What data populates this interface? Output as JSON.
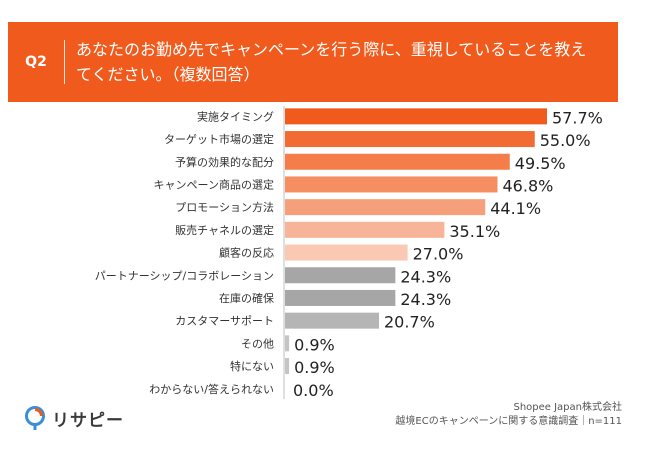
{
  "header": {
    "question_label": "Q2",
    "question_text": "あなたのお勤め先でキャンペーンを行う際に、重視していることを教えてください。（複数回答）"
  },
  "chart_data": {
    "type": "bar",
    "orientation": "horizontal",
    "categories": [
      "実施タイミング",
      "ターゲット市場の選定",
      "予算の効果的な配分",
      "キャンペーン商品の選定",
      "プロモーション方法",
      "販売チャネルの選定",
      "顧客の反応",
      "パートナーシップ/コラボレーション",
      "在庫の確保",
      "カスタマーサポート",
      "その他",
      "特にない",
      "わからない/答えられない"
    ],
    "values": [
      57.7,
      55.0,
      49.5,
      46.8,
      44.1,
      35.1,
      27.0,
      24.3,
      24.3,
      20.7,
      0.9,
      0.9,
      0.0
    ],
    "value_labels": [
      "57.7%",
      "55.0%",
      "49.5%",
      "46.8%",
      "44.1%",
      "35.1%",
      "27.0%",
      "24.3%",
      "24.3%",
      "20.7%",
      "0.9%",
      "0.9%",
      "0.0%"
    ],
    "colors": [
      "#f05a1c",
      "#f26b32",
      "#f47d4a",
      "#f58e60",
      "#f6a07b",
      "#f8b498",
      "#f9c9b4",
      "#a6a6a6",
      "#a6a6a6",
      "#b5b5b5",
      "#c4c4c4",
      "#c4c4c4",
      "#c4c4c4"
    ],
    "xlim": [
      0,
      60
    ],
    "unit": "%"
  },
  "footer": {
    "logo_text": "リサピー",
    "source_line1": "Shopee Japan株式会社",
    "source_line2": "越境ECのキャンペーンに関する意識調査｜n=111"
  }
}
